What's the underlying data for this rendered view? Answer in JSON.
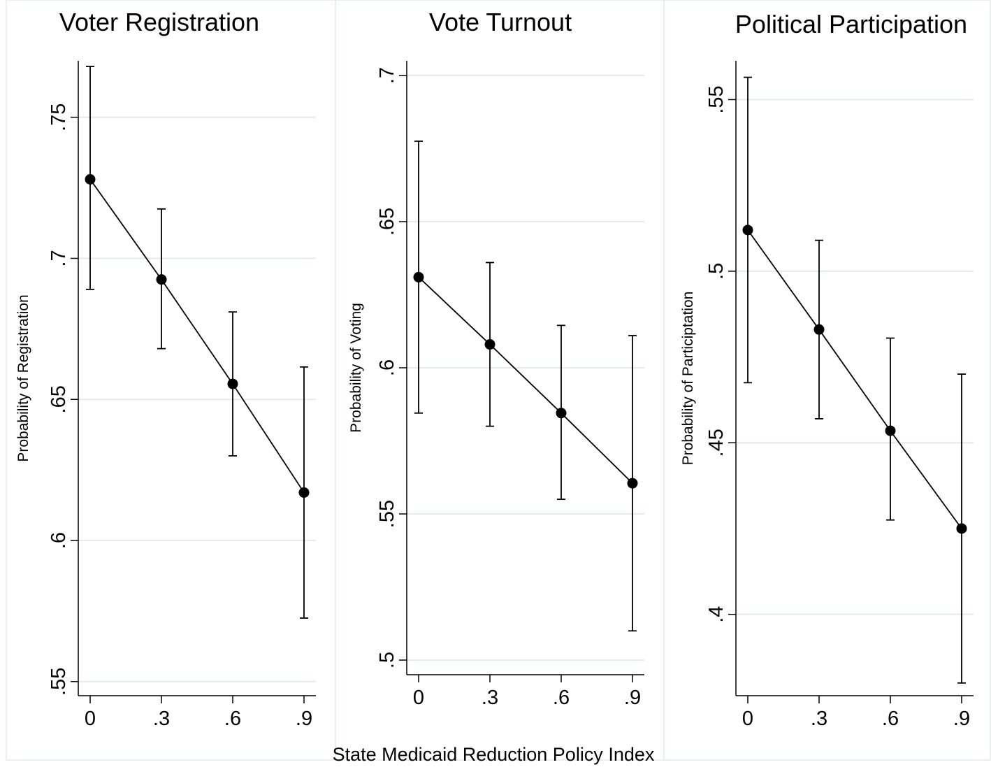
{
  "figure": {
    "xlabel": "State Medicaid Reduction Policy Index"
  },
  "chart_data": [
    {
      "type": "line",
      "title": "Voter Registration",
      "ylabel": "Probability of Registration",
      "x": [
        0,
        0.3,
        0.6,
        0.9
      ],
      "xtick_labels": [
        "0",
        ".3",
        ".6",
        ".9"
      ],
      "xlim": [
        -0.05,
        0.95
      ],
      "ylim": [
        0.545,
        0.77
      ],
      "yticks": [
        0.55,
        0.6,
        0.65,
        0.7,
        0.75
      ],
      "ytick_labels": [
        ".55",
        ".6",
        ".65",
        ".7",
        ".75"
      ],
      "grid": true,
      "series": [
        {
          "values": [
            0.728,
            0.6925,
            0.6555,
            0.617
          ],
          "ci_low": [
            0.689,
            0.668,
            0.63,
            0.5725
          ],
          "ci_high": [
            0.768,
            0.7175,
            0.681,
            0.6615
          ]
        }
      ]
    },
    {
      "type": "line",
      "title": "Vote Turnout",
      "ylabel": "Probability of Voting",
      "x": [
        0,
        0.3,
        0.6,
        0.9
      ],
      "xtick_labels": [
        "0",
        ".3",
        ".6",
        ".9"
      ],
      "xlim": [
        -0.05,
        0.95
      ],
      "ylim": [
        0.495,
        0.705
      ],
      "yticks": [
        0.5,
        0.55,
        0.6,
        0.65,
        0.7
      ],
      "ytick_labels": [
        ".5",
        ".55",
        ".6",
        ".65",
        ".7"
      ],
      "grid": true,
      "series": [
        {
          "values": [
            0.631,
            0.608,
            0.5845,
            0.5605
          ],
          "ci_low": [
            0.5845,
            0.58,
            0.555,
            0.51
          ],
          "ci_high": [
            0.6775,
            0.636,
            0.6145,
            0.611
          ]
        }
      ]
    },
    {
      "type": "line",
      "title": "Political Participation",
      "ylabel": "Probability of Participtation",
      "x": [
        0,
        0.3,
        0.6,
        0.9
      ],
      "xtick_labels": [
        "0",
        ".3",
        ".6",
        ".9"
      ],
      "xlim": [
        -0.05,
        0.95
      ],
      "ylim": [
        0.3763,
        0.5613
      ],
      "yticks": [
        0.4,
        0.45,
        0.5,
        0.55
      ],
      "ytick_labels": [
        ".4",
        ".45",
        ".5",
        ".55"
      ],
      "grid": true,
      "series": [
        {
          "values": [
            0.512,
            0.483,
            0.4535,
            0.425
          ],
          "ci_low": [
            0.4675,
            0.457,
            0.4275,
            0.38
          ],
          "ci_high": [
            0.5565,
            0.509,
            0.4805,
            0.47
          ]
        }
      ]
    }
  ]
}
